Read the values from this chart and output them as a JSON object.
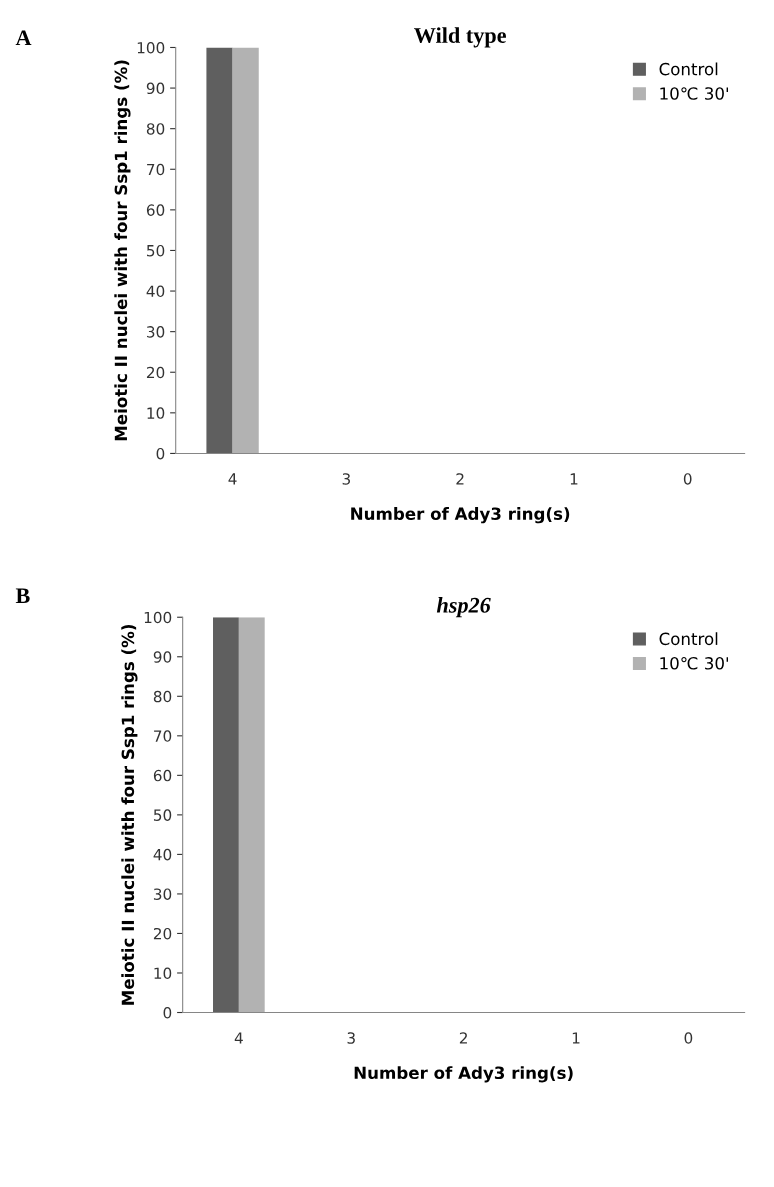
{
  "chart_data": [
    {
      "type": "bar",
      "title": "Wild type",
      "xlabel": "Number of Ady3 ring(s)",
      "ylabel": "Meiotic II nuclei with four Ssp1 rings (%)",
      "annotations": [
        "A"
      ],
      "categories": [
        "4",
        "3",
        "2",
        "1",
        "0"
      ],
      "series": [
        {
          "name": "Control",
          "color": "#5f5f5f",
          "values": [
            100,
            0,
            0,
            0,
            0
          ]
        },
        {
          "name": "10℃ 30'",
          "color": "#b2b2b2",
          "values": [
            100,
            0,
            0,
            0,
            0
          ]
        }
      ],
      "ylim": [
        0,
        100
      ],
      "yticks": [
        0,
        10,
        20,
        30,
        40,
        50,
        60,
        70,
        80,
        90,
        100
      ],
      "legend": "top right",
      "grid": false
    },
    {
      "type": "bar",
      "title": "hsp26",
      "xlabel": "Number of Ady3 ring(s)",
      "ylabel": "Meiotic II nuclei with four Ssp1 rings (%)",
      "annotations": [
        "B"
      ],
      "categories": [
        "4",
        "3",
        "2",
        "1",
        "0"
      ],
      "series": [
        {
          "name": "Control",
          "color": "#5f5f5f",
          "values": [
            100,
            0,
            0,
            0,
            0
          ]
        },
        {
          "name": "10℃ 30'",
          "color": "#b2b2b2",
          "values": [
            100,
            0,
            0,
            0,
            0
          ]
        }
      ],
      "ylim": [
        0,
        100
      ],
      "yticks": [
        0,
        10,
        20,
        30,
        40,
        50,
        60,
        70,
        80,
        90,
        100
      ],
      "legend": "top right",
      "grid": false
    }
  ]
}
